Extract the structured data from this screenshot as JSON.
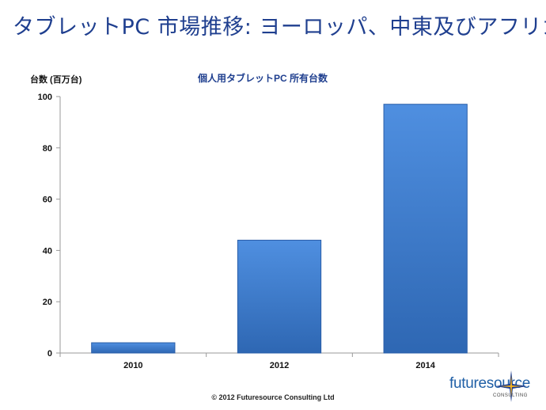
{
  "page": {
    "title": "タブレットPC 市場推移: ヨーロッパ、中東及びアフリカ",
    "footer": "© 2012 Futuresource Consulting Ltd",
    "logo": {
      "main": "futuresource",
      "sub": "CONSULTING"
    }
  },
  "chart_data": {
    "type": "bar",
    "title": "個人用タブレットPC  所有台数",
    "ylabel": "台数 (百万台)",
    "xlabel": "",
    "categories": [
      "2010",
      "2012",
      "2014"
    ],
    "values": [
      4,
      44,
      97
    ],
    "ylim": [
      0,
      100
    ],
    "yticks": [
      0,
      20,
      40,
      60,
      80,
      100
    ],
    "grid": false,
    "bar_color": "#3f7ccc"
  }
}
